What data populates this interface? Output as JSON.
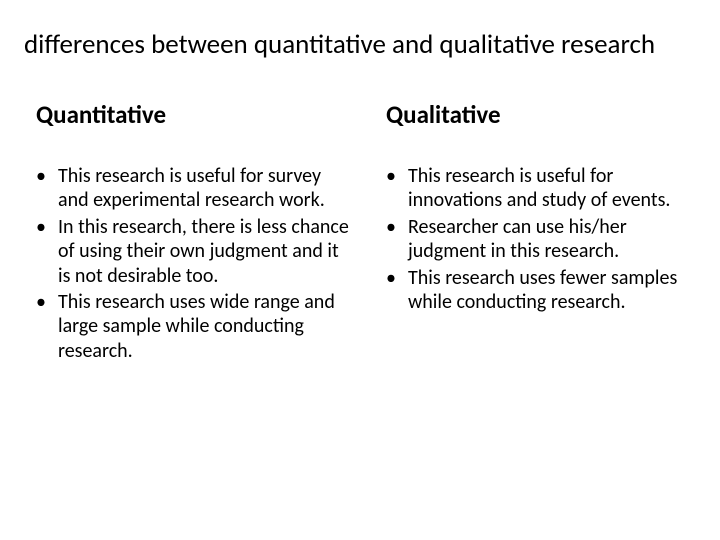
{
  "title": "differences between quantitative and qualitative research",
  "left": {
    "heading": "Quantitative",
    "bullets": [
      "This research is useful for survey and experimental research work.",
      "In this research, there is less chance of using their own judgment and it is not desirable too.",
      "This research uses wide range and large sample while conducting research."
    ]
  },
  "right": {
    "heading": "Qualitative",
    "bullets": [
      "This research is useful for innovations and study of events.",
      "Researcher can use his/her judgment in this research.",
      "This research uses fewer samples while conducting research."
    ]
  },
  "styling": {
    "background_color": "#ffffff",
    "text_color": "#000000",
    "title_fontsize": 27,
    "heading_fontsize": 25,
    "body_fontsize": 20,
    "font_family": "Calibri, Arial, sans-serif"
  }
}
